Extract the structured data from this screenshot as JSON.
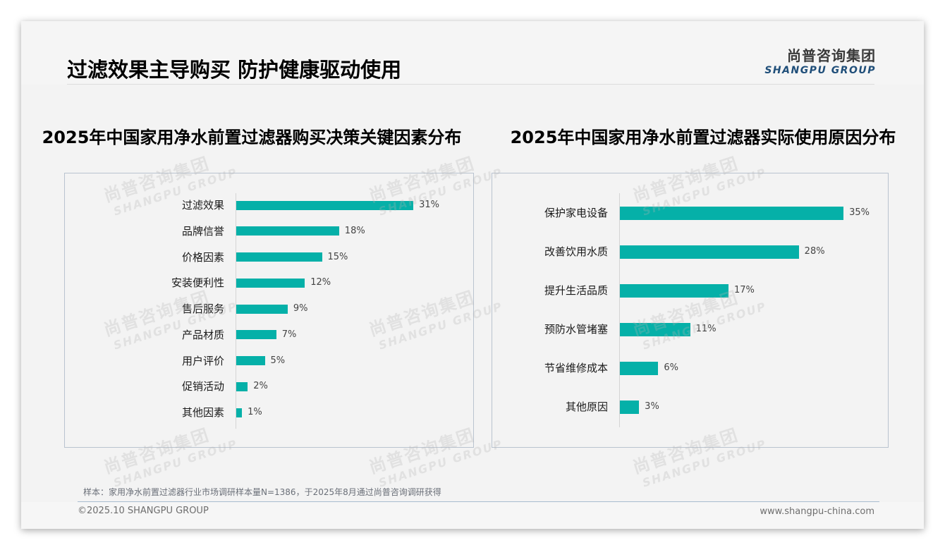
{
  "header": {
    "title": "过滤效果主导购买 防护健康驱动使用",
    "logo_cn": "尚普咨询集团",
    "logo_en": "SHANGPU GROUP"
  },
  "watermark": {
    "cn": "尚普咨询集团",
    "en": "SHANGPU GROUP"
  },
  "colors": {
    "bar": "#05b0a8",
    "logo_en": "#1f4e79",
    "frame_border": "#b9c3cf"
  },
  "chart_data": [
    {
      "type": "bar",
      "orientation": "horizontal",
      "title": "2025年中国家用净水前置过滤器购买决策关键因素分布",
      "categories": [
        "过滤效果",
        "品牌信誉",
        "价格因素",
        "安装便利性",
        "售后服务",
        "产品材质",
        "用户评价",
        "促销活动",
        "其他因素"
      ],
      "values": [
        31,
        18,
        15,
        12,
        9,
        7,
        5,
        2,
        1
      ],
      "labels": [
        "31%",
        "18%",
        "15%",
        "12%",
        "9%",
        "7%",
        "5%",
        "2%",
        "1%"
      ],
      "xlabel": "",
      "ylabel": "",
      "unit": "%",
      "grid": false,
      "legend": "none"
    },
    {
      "type": "bar",
      "orientation": "horizontal",
      "title": "2025年中国家用净水前置过滤器实际使用原因分布",
      "categories": [
        "保护家电设备",
        "改善饮用水质",
        "提升生活品质",
        "预防水管堵塞",
        "节省维修成本",
        "其他原因"
      ],
      "values": [
        35,
        28,
        17,
        11,
        6,
        3
      ],
      "labels": [
        "35%",
        "28%",
        "17%",
        "11%",
        "6%",
        "3%"
      ],
      "xlabel": "",
      "ylabel": "",
      "unit": "%",
      "grid": false,
      "legend": "none"
    }
  ],
  "footer": {
    "footnote": "样本：家用净水前置过滤器行业市场调研样本量N=1386，于2025年8月通过尚普咨询调研获得",
    "copyright": "©2025.10 SHANGPU GROUP",
    "url": "www.shangpu-china.com"
  }
}
